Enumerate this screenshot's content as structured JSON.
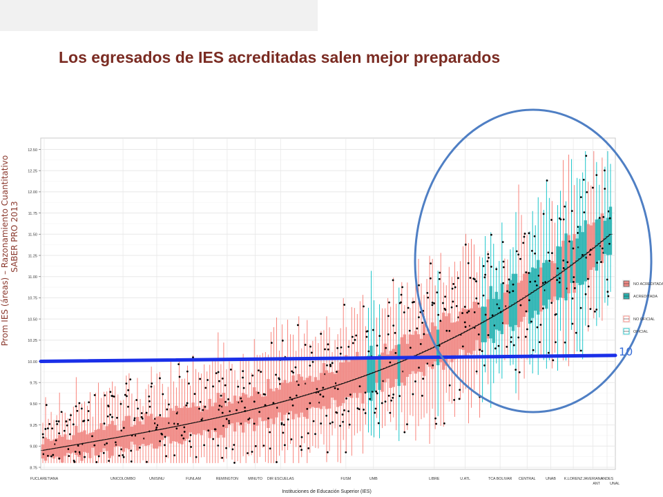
{
  "header": {
    "title": "Los egresados de IES acreditadas salen mejor preparados"
  },
  "ylabel_lines": [
    "Prom IES (áreas) – Razonamiento Cuantitativo",
    "SABER PRO 2013"
  ],
  "marker_label": "10",
  "colors": {
    "no_acreditada": "#f8766d",
    "acreditada": "#00bfc4",
    "fill_no_acreditada": "#f08a85",
    "fill_acreditada": "#2bb3b1",
    "line_10": "#1a2fe8",
    "circle": "#4f7fc4",
    "title": "#7a2b22",
    "grid": "#e8e8e8"
  },
  "chart_data": {
    "type": "boxplot",
    "xlabel": "Instituciones de Educación Superior (IES)",
    "ylabel": "",
    "ylim": [
      8.75,
      12.5
    ],
    "yticks": [
      8.75,
      9.0,
      9.25,
      9.5,
      9.75,
      10.0,
      10.25,
      10.5,
      10.75,
      11.0,
      11.25,
      11.5,
      11.75,
      12.0,
      12.25,
      12.5
    ],
    "ytick_labels": [
      "8.75",
      "9.00",
      "9.25",
      "9.50",
      "9.75",
      "10.00",
      "10.25",
      "10.50",
      "10.75",
      "11.00",
      "11.25",
      "11.50",
      "11.75",
      "12.00",
      "12.25",
      "12.50"
    ],
    "x_labels": [
      {
        "label": "FUCLARETIANA",
        "pos": 0.0
      },
      {
        "label": "UNICOLOMBO",
        "pos": 0.14
      },
      {
        "label": "UNISINU",
        "pos": 0.2
      },
      {
        "label": "FUNLAM",
        "pos": 0.265
      },
      {
        "label": "REMINGTON",
        "pos": 0.325
      },
      {
        "label": "MINUTO",
        "pos": 0.375
      },
      {
        "label": "DIR ESCUELAS",
        "pos": 0.42
      },
      {
        "label": "FUSM",
        "pos": 0.536
      },
      {
        "label": "UMB",
        "pos": 0.585
      },
      {
        "label": "LIBRE",
        "pos": 0.693
      },
      {
        "label": "U.ATL",
        "pos": 0.748
      },
      {
        "label": "TCA BOLIVAR",
        "pos": 0.81
      },
      {
        "label": "CENTRAL",
        "pos": 0.858
      },
      {
        "label": "UNAB",
        "pos": 0.9
      },
      {
        "label": "K.LORENZ",
        "pos": 0.94
      },
      {
        "label": "JAVERIANA",
        "pos": 0.975
      },
      {
        "label": "ANT",
        "pos": 0.982
      },
      {
        "label": "ANDES",
        "pos": 1.0
      },
      {
        "label": "UNAL",
        "pos": 1.005
      }
    ],
    "n_institutions": 205,
    "median_range": [
      8.95,
      11.5
    ],
    "reference_line": {
      "y_start": 10.0,
      "y_end": 10.07,
      "label": "10"
    },
    "legend": {
      "placement": "right",
      "entries": [
        "NO ACREDITADA",
        "ACREDITADA",
        "NO OFICIAL",
        "OFICIAL"
      ]
    }
  }
}
